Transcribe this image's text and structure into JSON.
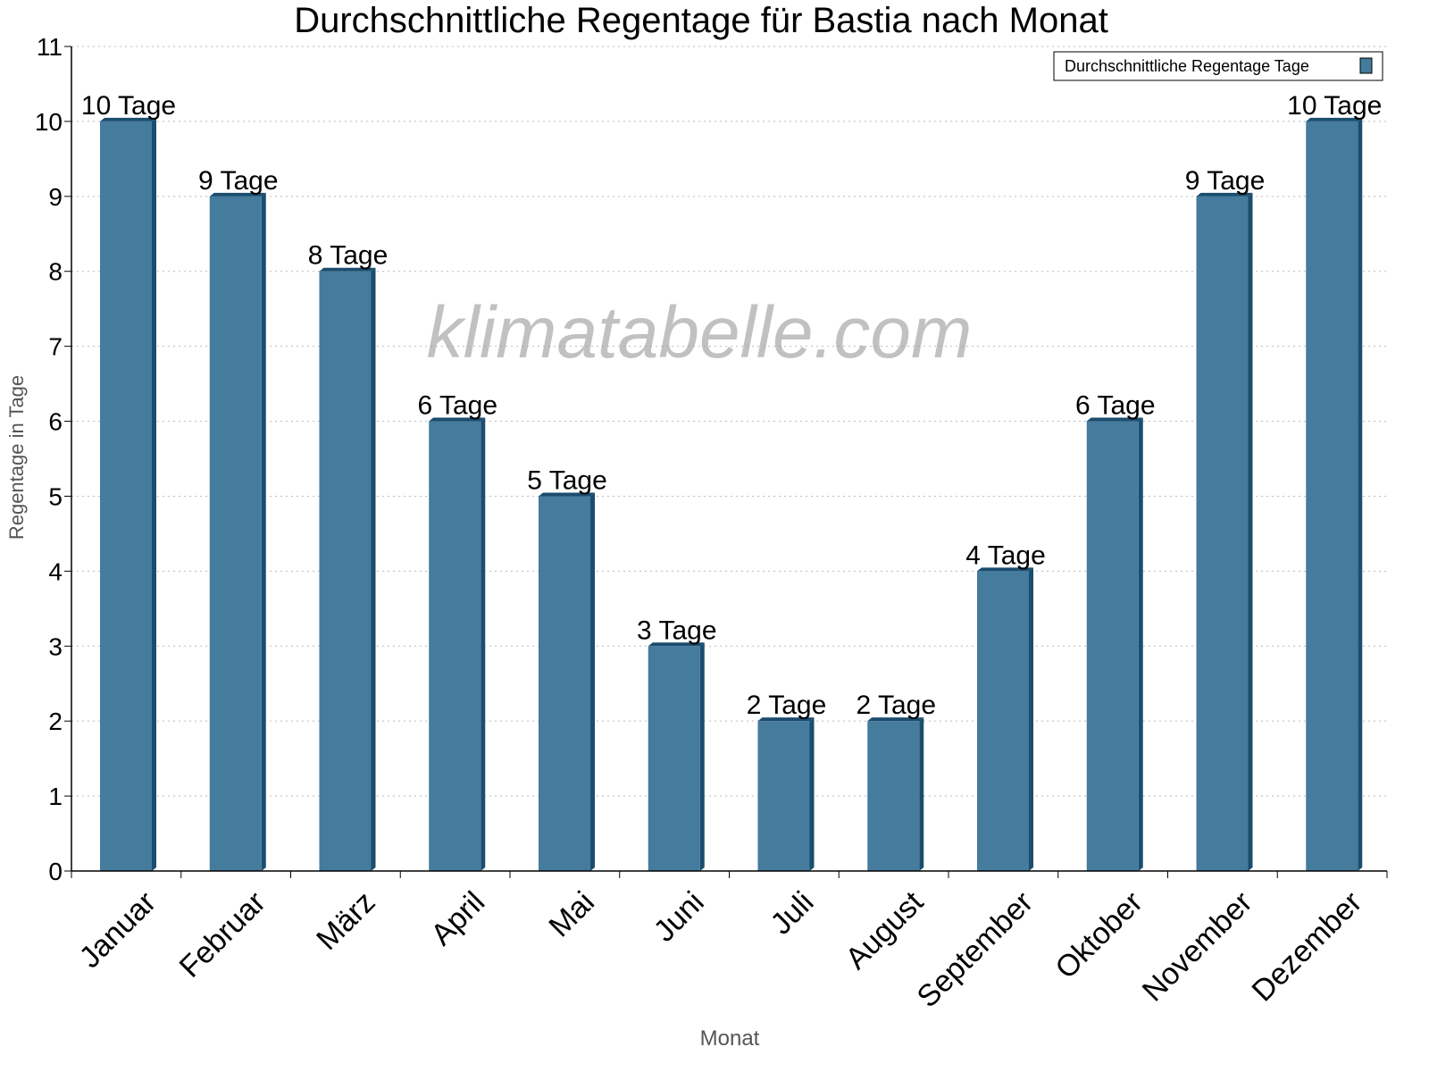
{
  "chart_data": {
    "type": "bar",
    "title": "Durchschnittliche Regentage für Bastia nach Monat",
    "xlabel": "Monat",
    "ylabel": "Regentage in Tage",
    "ylim": [
      0,
      11
    ],
    "yticks": [
      0,
      1,
      2,
      3,
      4,
      5,
      6,
      7,
      8,
      9,
      10,
      11
    ],
    "grid": true,
    "legend_position": "top-right",
    "categories": [
      "Januar",
      "Februar",
      "März",
      "April",
      "Mai",
      "Juni",
      "Juli",
      "August",
      "September",
      "Oktober",
      "November",
      "Dezember"
    ],
    "series": [
      {
        "name": "Durchschnittliche Regentage Tage",
        "values": [
          10,
          9,
          8,
          6,
          5,
          3,
          2,
          2,
          4,
          6,
          9,
          10
        ],
        "color": "#457b9d",
        "side_color": "#1b4d6e"
      }
    ],
    "data_labels": [
      "10 Tage",
      "9 Tage",
      "8 Tage",
      "6 Tage",
      "5 Tage",
      "3 Tage",
      "2 Tage",
      "2 Tage",
      "4 Tage",
      "6 Tage",
      "9 Tage",
      "10 Tage"
    ],
    "watermark": "klimatabelle.com"
  }
}
